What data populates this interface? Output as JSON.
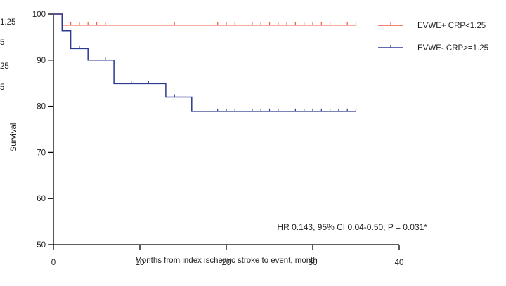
{
  "chart_data": {
    "type": "line",
    "title": "",
    "xlabel": "Months from index ischemic stroke to event, month",
    "ylabel": "Survival",
    "xlim": [
      0,
      40
    ],
    "ylim": [
      50,
      100
    ],
    "x_ticks": [
      "0",
      "10",
      "20",
      "30",
      "40"
    ],
    "y_ticks": [
      "50",
      "60",
      "70",
      "80",
      "90",
      "100"
    ],
    "grid": false,
    "legend_position": "top-right",
    "annotation": "HR 0.143, 95% CI 0.04-0.50, P = 0.031*",
    "clipped_left_text": [
      "1.25",
      "5",
      "25",
      "5"
    ],
    "series": [
      {
        "name": "EVWE+ CRP<1.25",
        "color": "#ef5b43",
        "steps": [
          [
            0,
            100
          ],
          [
            1,
            97.6
          ],
          [
            35,
            97.6
          ]
        ],
        "censor_x": [
          2,
          3,
          4,
          5,
          6,
          14,
          19,
          20,
          21,
          23,
          24,
          25,
          26,
          27,
          28,
          29,
          30,
          31,
          32,
          34,
          35
        ]
      },
      {
        "name": "EVWE- CRP>=1.25",
        "color": "#2b3990",
        "steps": [
          [
            0,
            100
          ],
          [
            1,
            96.4
          ],
          [
            2,
            92.5
          ],
          [
            4,
            90.0
          ],
          [
            7,
            84.9
          ],
          [
            13,
            82.0
          ],
          [
            16,
            78.9
          ],
          [
            35,
            78.9
          ]
        ],
        "censor_x": [
          3,
          6,
          9,
          11,
          14,
          19,
          20,
          21,
          23,
          24,
          25,
          26,
          28,
          29,
          30,
          31,
          32,
          33,
          34,
          35
        ]
      }
    ]
  }
}
